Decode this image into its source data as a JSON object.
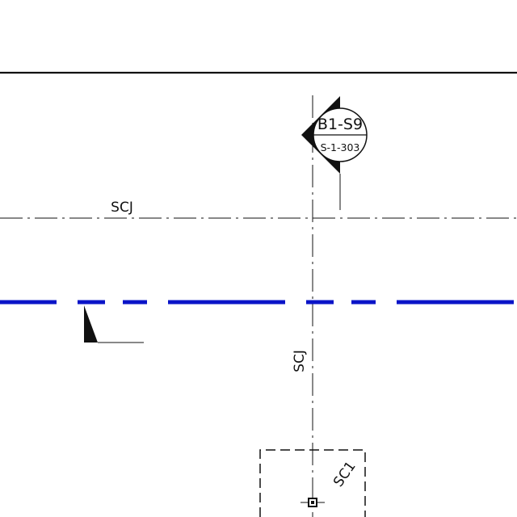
{
  "drawing": {
    "section_marker": {
      "label_top": "B1-S9",
      "label_bottom": "S-1-303"
    },
    "labels": {
      "horizontal_joint": "SCJ",
      "vertical_joint": "SCJ",
      "column_tag": "SC1"
    },
    "colors": {
      "linework": "#111111",
      "highlight_line": "#0a14c8",
      "background": "#ffffff"
    }
  }
}
